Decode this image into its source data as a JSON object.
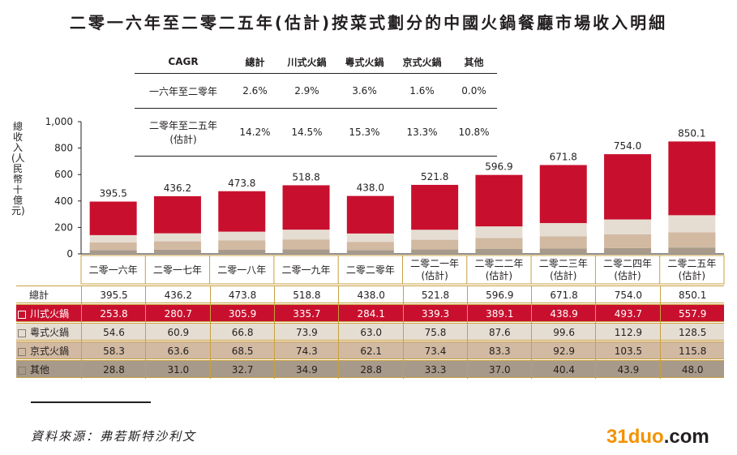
{
  "title": "二零一六年至二零二五年(估計)按菜式劃分的中國火鍋餐廳市場收入明細",
  "chart_data": {
    "type": "bar",
    "stacked": true,
    "ylabel": "總收入(人民幣十億元)",
    "ylim": [
      0,
      1000
    ],
    "yticks": [
      "0",
      "200",
      "400",
      "600",
      "800",
      "1,000"
    ],
    "categories": [
      "二零一六年",
      "二零一七年",
      "二零一八年",
      "二零一九年",
      "二零二零年",
      "二零二一年\n(估計)",
      "二零二二年\n(估計)",
      "二零二三年\n(估計)",
      "二零二四年\n(估計)",
      "二零二五年\n(估計)"
    ],
    "totals": [
      395.5,
      436.2,
      473.8,
      518.8,
      438.0,
      521.8,
      596.9,
      671.8,
      754.0,
      850.1
    ],
    "total_labels": [
      "395.5",
      "436.2",
      "473.8",
      "518.8",
      "438.0",
      "521.8",
      "596.9",
      "671.8",
      "754.0",
      "850.1"
    ],
    "series": [
      {
        "name": "其他",
        "color": "#a89a8a",
        "values": [
          28.8,
          31.0,
          32.7,
          34.9,
          28.8,
          33.3,
          37.0,
          40.4,
          43.9,
          48.0
        ],
        "labels": [
          "28.8",
          "31.0",
          "32.7",
          "34.9",
          "28.8",
          "33.3",
          "37.0",
          "40.4",
          "43.9",
          "48.0"
        ]
      },
      {
        "name": "京式火鍋",
        "color": "#d1b9a2",
        "values": [
          58.3,
          63.6,
          68.5,
          74.3,
          62.1,
          73.4,
          83.3,
          92.9,
          103.5,
          115.8
        ],
        "labels": [
          "58.3",
          "63.6",
          "68.5",
          "74.3",
          "62.1",
          "73.4",
          "83.3",
          "92.9",
          "103.5",
          "115.8"
        ]
      },
      {
        "name": "粵式火鍋",
        "color": "#e6ddd2",
        "values": [
          54.6,
          60.9,
          66.8,
          73.9,
          63.0,
          75.8,
          87.6,
          99.6,
          112.9,
          128.5
        ],
        "labels": [
          "54.6",
          "60.9",
          "66.8",
          "73.9",
          "63.0",
          "75.8",
          "87.6",
          "99.6",
          "112.9",
          "128.5"
        ]
      },
      {
        "name": "川式火鍋",
        "color": "#c8102e",
        "values": [
          253.8,
          280.7,
          305.9,
          335.7,
          284.1,
          339.3,
          389.1,
          438.9,
          493.7,
          557.9
        ],
        "labels": [
          "253.8",
          "280.7",
          "305.9",
          "335.7",
          "284.1",
          "339.3",
          "389.1",
          "438.9",
          "493.7",
          "557.9"
        ]
      }
    ]
  },
  "cagr": {
    "header": "CAGR",
    "columns": [
      "總計",
      "川式火鍋",
      "粵式火鍋",
      "京式火鍋",
      "其他"
    ],
    "rows": [
      {
        "label": "一六年至二零年",
        "values": [
          "2.6%",
          "2.9%",
          "3.6%",
          "1.6%",
          "0.0%"
        ]
      },
      {
        "label": "二零年至二五年\n(估計)",
        "values": [
          "14.2%",
          "14.5%",
          "15.3%",
          "13.3%",
          "10.8%"
        ]
      }
    ]
  },
  "data_table": {
    "total_label": "總計",
    "sichuan_label": "川式火鍋",
    "cantonese_label": "粵式火鍋",
    "beijing_label": "京式火鍋",
    "other_label": "其他",
    "colors": {
      "sichuan": "#c8102e",
      "cantonese": "#e6ddd2",
      "beijing": "#d1b9a2",
      "other": "#a89a8a",
      "border": "#c8a040"
    }
  },
  "source": "資料來源：弗若斯特沙利文",
  "watermark": {
    "a": "31duo",
    "b": ".com"
  }
}
